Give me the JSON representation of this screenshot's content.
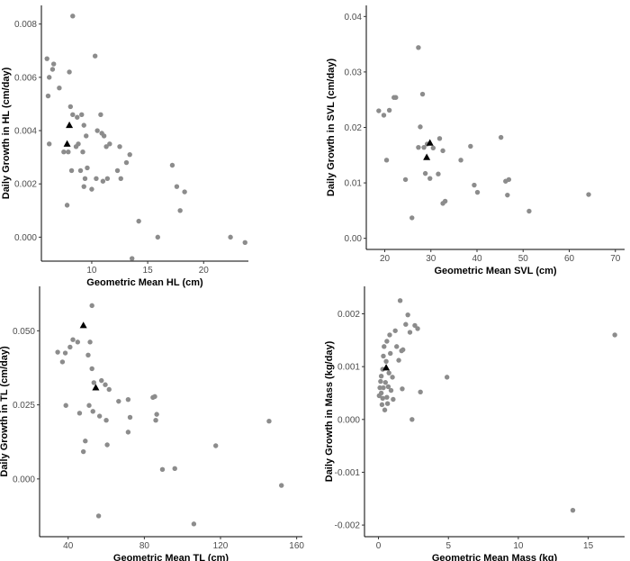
{
  "chart_data": [
    {
      "type": "scatter",
      "xlabel": "Geometric Mean HL (cm)",
      "ylabel": "Daily Growth in HL (cm/day)",
      "xlim": [
        5.5,
        24
      ],
      "ylim": [
        -0.0009,
        0.0087
      ],
      "xticks": [
        10,
        15,
        20
      ],
      "yticks": [
        0.0,
        0.002,
        0.004,
        0.006,
        0.008
      ],
      "ytick_labels": [
        "0.000",
        "0.002",
        "0.004",
        "0.006",
        "0.008"
      ],
      "grid": false,
      "series": [
        {
          "marker": "circle",
          "color": "#8c8c8c",
          "points": [
            [
              6.0,
              0.0067
            ],
            [
              6.2,
              0.006
            ],
            [
              6.5,
              0.0063
            ],
            [
              6.6,
              0.0065
            ],
            [
              6.1,
              0.0053
            ],
            [
              7.1,
              0.0056
            ],
            [
              6.2,
              0.0035
            ],
            [
              8.3,
              0.0083
            ],
            [
              8.0,
              0.0062
            ],
            [
              10.3,
              0.0068
            ],
            [
              7.5,
              0.0032
            ],
            [
              7.9,
              0.0032
            ],
            [
              7.8,
              0.0012
            ],
            [
              8.1,
              0.0049
            ],
            [
              8.3,
              0.0046
            ],
            [
              8.7,
              0.0045
            ],
            [
              9.1,
              0.0046
            ],
            [
              9.3,
              0.0042
            ],
            [
              8.8,
              0.0035
            ],
            [
              8.6,
              0.0034
            ],
            [
              9.2,
              0.0032
            ],
            [
              9.5,
              0.0038
            ],
            [
              10.5,
              0.004
            ],
            [
              10.9,
              0.0039
            ],
            [
              11.1,
              0.0038
            ],
            [
              10.8,
              0.0046
            ],
            [
              11.3,
              0.0034
            ],
            [
              11.6,
              0.0035
            ],
            [
              12.5,
              0.0034
            ],
            [
              8.2,
              0.0025
            ],
            [
              9.0,
              0.0025
            ],
            [
              9.3,
              0.0019
            ],
            [
              9.6,
              0.0026
            ],
            [
              9.4,
              0.0022
            ],
            [
              10.0,
              0.0018
            ],
            [
              10.4,
              0.0022
            ],
            [
              11.0,
              0.0021
            ],
            [
              11.4,
              0.0022
            ],
            [
              12.3,
              0.0025
            ],
            [
              12.6,
              0.0022
            ],
            [
              13.1,
              0.0028
            ],
            [
              13.4,
              0.0031
            ],
            [
              14.2,
              0.0006
            ],
            [
              13.6,
              -0.0008
            ],
            [
              15.9,
              0.0
            ],
            [
              17.2,
              0.0027
            ],
            [
              17.6,
              0.0019
            ],
            [
              17.9,
              0.001
            ],
            [
              18.3,
              0.0017
            ],
            [
              22.4,
              0.0
            ],
            [
              23.7,
              -0.0002
            ]
          ]
        },
        {
          "marker": "triangle",
          "color": "#000000",
          "points": [
            [
              8.0,
              0.0042
            ],
            [
              7.8,
              0.0035
            ]
          ]
        }
      ]
    },
    {
      "type": "scatter",
      "xlabel": "Geometric Mean SVL (cm)",
      "ylabel": "Daily Growth in SVL (cm/day)",
      "xlim": [
        16,
        72
      ],
      "ylim": [
        -0.002,
        0.042
      ],
      "xticks": [
        20,
        30,
        40,
        50,
        60,
        70
      ],
      "yticks": [
        0.0,
        0.01,
        0.02,
        0.03,
        0.04
      ],
      "ytick_labels": [
        "0.00",
        "0.01",
        "0.02",
        "0.03",
        "0.04"
      ],
      "grid": false,
      "series": [
        {
          "marker": "circle",
          "color": "#8c8c8c",
          "points": [
            [
              18.7,
              0.023
            ],
            [
              19.8,
              0.0222
            ],
            [
              21.0,
              0.0231
            ],
            [
              22.0,
              0.0254
            ],
            [
              22.4,
              0.0254
            ],
            [
              20.4,
              0.0141
            ],
            [
              24.5,
              0.0106
            ],
            [
              25.9,
              0.0037
            ],
            [
              27.3,
              0.0344
            ],
            [
              28.2,
              0.026
            ],
            [
              27.7,
              0.0201
            ],
            [
              27.3,
              0.0164
            ],
            [
              28.5,
              0.0164
            ],
            [
              29.2,
              0.017
            ],
            [
              28.8,
              0.0117
            ],
            [
              29.8,
              0.0108
            ],
            [
              30.5,
              0.0163
            ],
            [
              31.9,
              0.018
            ],
            [
              32.6,
              0.0158
            ],
            [
              31.6,
              0.0116
            ],
            [
              32.6,
              0.0063
            ],
            [
              33.1,
              0.0067
            ],
            [
              36.5,
              0.0141
            ],
            [
              38.6,
              0.0166
            ],
            [
              39.4,
              0.0096
            ],
            [
              40.1,
              0.0083
            ],
            [
              45.2,
              0.0182
            ],
            [
              46.2,
              0.0103
            ],
            [
              46.9,
              0.0106
            ],
            [
              46.6,
              0.0078
            ],
            [
              51.3,
              0.0049
            ],
            [
              64.2,
              0.0079
            ]
          ]
        },
        {
          "marker": "triangle",
          "color": "#000000",
          "points": [
            [
              29.8,
              0.0172
            ],
            [
              29.1,
              0.0146
            ]
          ]
        }
      ]
    },
    {
      "type": "scatter",
      "xlabel": "Geometric Mean TL (cm)",
      "ylabel": "Daily Growth in TL (cm/day)",
      "xlim": [
        25,
        163
      ],
      "ylim": [
        -0.0195,
        0.065
      ],
      "xticks": [
        40,
        80,
        120,
        160
      ],
      "yticks": [
        0.0,
        0.025,
        0.05
      ],
      "ytick_labels": [
        "0.000",
        "0.025",
        "0.050"
      ],
      "grid": false,
      "series": [
        {
          "marker": "circle",
          "color": "#8c8c8c",
          "points": [
            [
              34.5,
              0.0428
            ],
            [
              37.0,
              0.0395
            ],
            [
              38.5,
              0.0425
            ],
            [
              41.0,
              0.0445
            ],
            [
              42.5,
              0.047
            ],
            [
              45.0,
              0.0462
            ],
            [
              52.5,
              0.0585
            ],
            [
              51.5,
              0.0462
            ],
            [
              50.5,
              0.0418
            ],
            [
              52.5,
              0.0372
            ],
            [
              53.5,
              0.0325
            ],
            [
              38.8,
              0.0248
            ],
            [
              46.0,
              0.0222
            ],
            [
              49.0,
              0.0128
            ],
            [
              48.0,
              0.0092
            ],
            [
              51.0,
              0.0248
            ],
            [
              53.0,
              0.0228
            ],
            [
              56.5,
              0.0212
            ],
            [
              57.5,
              0.0332
            ],
            [
              59.5,
              0.0318
            ],
            [
              61.5,
              0.0302
            ],
            [
              60.0,
              0.0198
            ],
            [
              60.5,
              0.0115
            ],
            [
              56.0,
              -0.0125
            ],
            [
              66.5,
              0.0262
            ],
            [
              71.5,
              0.0268
            ],
            [
              72.5,
              0.0208
            ],
            [
              71.5,
              0.0158
            ],
            [
              84.5,
              0.0275
            ],
            [
              85.5,
              0.0278
            ],
            [
              86.5,
              0.0218
            ],
            [
              86.0,
              0.0198
            ],
            [
              89.5,
              0.0032
            ],
            [
              96.0,
              0.0035
            ],
            [
              106.0,
              -0.0152
            ],
            [
              117.5,
              0.0112
            ],
            [
              145.5,
              0.0195
            ],
            [
              152.0,
              -0.0022
            ]
          ]
        },
        {
          "marker": "triangle",
          "color": "#000000",
          "points": [
            [
              48.0,
              0.0518
            ],
            [
              54.5,
              0.0308
            ]
          ]
        }
      ]
    },
    {
      "type": "scatter",
      "xlabel": "Geometric Mean Mass (kg)",
      "ylabel": "Daily Growth in Mass (kg/day)",
      "xlim": [
        -1.0,
        17.6
      ],
      "ylim": [
        -0.00222,
        0.00252
      ],
      "xticks": [
        0,
        5,
        10,
        15
      ],
      "yticks": [
        -0.002,
        -0.001,
        0.0,
        0.001,
        0.002
      ],
      "ytick_labels": [
        "-0.002",
        "-0.001",
        "0.000",
        "0.001",
        "0.002"
      ],
      "grid": false,
      "series": [
        {
          "marker": "circle",
          "color": "#8c8c8c",
          "points": [
            [
              0.05,
              0.00045
            ],
            [
              0.1,
              0.0006
            ],
            [
              0.15,
              0.00072
            ],
            [
              0.2,
              0.0005
            ],
            [
              0.2,
              0.00082
            ],
            [
              0.25,
              0.00028
            ],
            [
              0.3,
              0.0004
            ],
            [
              0.3,
              0.00095
            ],
            [
              0.35,
              0.0012
            ],
            [
              0.35,
              0.0006
            ],
            [
              0.4,
              0.00138
            ],
            [
              0.45,
              0.00018
            ],
            [
              0.5,
              0.0007
            ],
            [
              0.55,
              0.0011
            ],
            [
              0.6,
              0.00148
            ],
            [
              0.6,
              0.00042
            ],
            [
              0.65,
              0.0003
            ],
            [
              0.7,
              0.00062
            ],
            [
              0.75,
              0.00088
            ],
            [
              0.8,
              0.0016
            ],
            [
              0.85,
              0.00125
            ],
            [
              0.9,
              0.00055
            ],
            [
              1.0,
              0.0008
            ],
            [
              1.05,
              0.00038
            ],
            [
              1.2,
              0.00168
            ],
            [
              1.3,
              0.00138
            ],
            [
              1.45,
              0.00112
            ],
            [
              1.55,
              0.00225
            ],
            [
              1.65,
              0.0013
            ],
            [
              1.7,
              0.00058
            ],
            [
              1.75,
              0.00132
            ],
            [
              1.95,
              0.0018
            ],
            [
              2.1,
              0.00198
            ],
            [
              2.25,
              0.00165
            ],
            [
              2.4,
              0.0
            ],
            [
              2.6,
              0.00178
            ],
            [
              2.8,
              0.00172
            ],
            [
              3.0,
              0.00052
            ],
            [
              4.9,
              0.0008
            ],
            [
              13.9,
              -0.00172
            ],
            [
              16.9,
              0.0016
            ]
          ]
        },
        {
          "marker": "triangle",
          "color": "#000000",
          "points": [
            [
              0.55,
              0.00098
            ]
          ]
        }
      ]
    }
  ]
}
